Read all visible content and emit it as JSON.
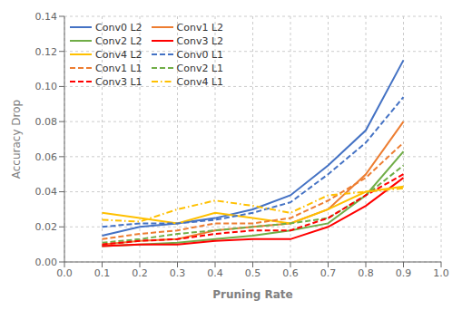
{
  "chart_data": {
    "type": "line",
    "xlabel": "Pruning Rate",
    "ylabel": "Accuracy Drop",
    "x": [
      0.1,
      0.2,
      0.3,
      0.4,
      0.5,
      0.6,
      0.7,
      0.8,
      0.9
    ],
    "series": [
      {
        "name": "Conv0 L2",
        "color": "#4472C4",
        "line_style": "solid",
        "values": [
          0.015,
          0.02,
          0.022,
          0.025,
          0.03,
          0.038,
          0.055,
          0.075,
          0.115
        ]
      },
      {
        "name": "Conv1 L2",
        "color": "#ED7D31",
        "line_style": "solid",
        "values": [
          0.01,
          0.012,
          0.013,
          0.018,
          0.02,
          0.022,
          0.03,
          0.05,
          0.08
        ]
      },
      {
        "name": "Conv2 L2",
        "color": "#70AD47",
        "line_style": "solid",
        "values": [
          0.009,
          0.01,
          0.011,
          0.013,
          0.015,
          0.018,
          0.022,
          0.038,
          0.063
        ]
      },
      {
        "name": "Conv3 L2",
        "color": "#FF0000",
        "line_style": "solid",
        "values": [
          0.009,
          0.01,
          0.01,
          0.012,
          0.013,
          0.013,
          0.02,
          0.032,
          0.048
        ]
      },
      {
        "name": "Conv4 L2",
        "color": "#FFC000",
        "line_style": "solid",
        "values": [
          0.028,
          0.025,
          0.022,
          0.028,
          0.025,
          0.022,
          0.03,
          0.04,
          0.043
        ]
      },
      {
        "name": "Conv0 L1",
        "color": "#4472C4",
        "line_style": "dashed",
        "values": [
          0.02,
          0.022,
          0.022,
          0.024,
          0.028,
          0.034,
          0.05,
          0.068,
          0.094
        ]
      },
      {
        "name": "Conv1 L1",
        "color": "#ED7D31",
        "line_style": "dashed",
        "values": [
          0.013,
          0.016,
          0.018,
          0.022,
          0.022,
          0.025,
          0.035,
          0.048,
          0.068
        ]
      },
      {
        "name": "Conv2 L1",
        "color": "#70AD47",
        "line_style": "dashed",
        "values": [
          0.011,
          0.013,
          0.016,
          0.018,
          0.02,
          0.022,
          0.025,
          0.038,
          0.055
        ]
      },
      {
        "name": "Conv3 L1",
        "color": "#FF0000",
        "line_style": "dashed",
        "values": [
          0.01,
          0.012,
          0.013,
          0.016,
          0.018,
          0.018,
          0.025,
          0.038,
          0.05
        ]
      },
      {
        "name": "Conv4 L1",
        "color": "#FFC000",
        "line_style": "dashdot",
        "values": [
          0.024,
          0.023,
          0.03,
          0.035,
          0.032,
          0.028,
          0.038,
          0.04,
          0.042
        ]
      }
    ],
    "xlim": [
      0,
      1.0
    ],
    "ylim": [
      0,
      0.14
    ],
    "xticks": [
      {
        "value": 0,
        "label": "0.0"
      },
      0.1,
      0.2,
      0.3,
      0.4,
      0.5,
      0.6,
      0.7,
      0.8,
      0.9,
      {
        "value": 1.0,
        "label": "1.0"
      }
    ],
    "yticks": [
      {
        "value": 0,
        "label": "0.00"
      },
      0.02,
      0.04,
      0.06,
      0.08,
      {
        "value": 0.1,
        "label": "0.10"
      },
      0.12,
      0.14
    ],
    "grid": true,
    "legend": "upper left"
  }
}
